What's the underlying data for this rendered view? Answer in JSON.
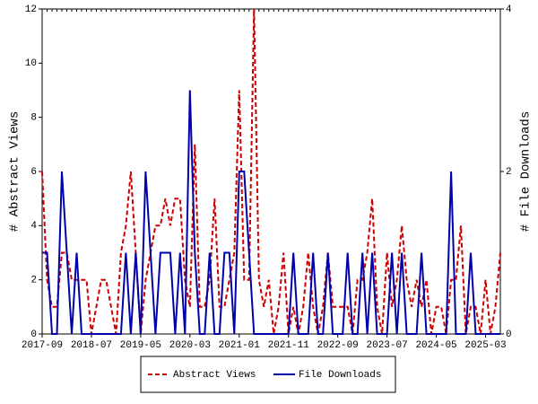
{
  "chart_data": {
    "type": "line",
    "x": [
      "2017-09",
      "2017-10",
      "2017-11",
      "2017-12",
      "2018-01",
      "2018-02",
      "2018-03",
      "2018-04",
      "2018-05",
      "2018-06",
      "2018-07",
      "2018-08",
      "2018-09",
      "2018-10",
      "2018-11",
      "2018-12",
      "2019-01",
      "2019-02",
      "2019-03",
      "2019-04",
      "2019-05",
      "2019-06",
      "2019-07",
      "2019-08",
      "2019-09",
      "2019-10",
      "2019-11",
      "2019-12",
      "2020-01",
      "2020-02",
      "2020-03",
      "2020-04",
      "2020-05",
      "2020-06",
      "2020-07",
      "2020-08",
      "2020-09",
      "2020-10",
      "2020-11",
      "2020-12",
      "2021-01",
      "2021-02",
      "2021-03",
      "2021-04",
      "2021-05",
      "2021-06",
      "2021-07",
      "2021-08",
      "2021-09",
      "2021-10",
      "2021-11",
      "2021-12",
      "2022-01",
      "2022-02",
      "2022-03",
      "2022-04",
      "2022-05",
      "2022-06",
      "2022-07",
      "2022-08",
      "2022-09",
      "2022-10",
      "2022-11",
      "2022-12",
      "2023-01",
      "2023-02",
      "2023-03",
      "2023-04",
      "2023-05",
      "2023-06",
      "2023-07",
      "2023-08",
      "2023-09",
      "2023-10",
      "2023-11",
      "2023-12",
      "2024-01",
      "2024-02",
      "2024-03",
      "2024-04",
      "2024-05",
      "2024-06",
      "2024-07",
      "2024-08",
      "2024-09",
      "2024-10",
      "2024-11",
      "2024-12",
      "2025-01",
      "2025-02",
      "2025-03",
      "2025-04",
      "2025-05",
      "2025-06"
    ],
    "xticks": [
      "2017-09",
      "2018-07",
      "2019-05",
      "2020-03",
      "2021-01",
      "2021-11",
      "2022-09",
      "2023-07",
      "2024-05",
      "2025-03"
    ],
    "ylabel": "# Abstract Views",
    "y2label": "# File Downloads",
    "ylim": [
      0,
      12
    ],
    "yticks": [
      0,
      2,
      4,
      6,
      8,
      10,
      12
    ],
    "y2lim": [
      0,
      4
    ],
    "y2ticks": [
      0,
      2,
      4
    ],
    "series": [
      {
        "name": "Abstract Views",
        "color": "#cc0000",
        "dash": true,
        "values": [
          6,
          2,
          1,
          1,
          3,
          3,
          2,
          2,
          2,
          2,
          0,
          1,
          2,
          2,
          1,
          0,
          3,
          4,
          6,
          3,
          0,
          2,
          3,
          4,
          4,
          5,
          4,
          5,
          5,
          2,
          1,
          7,
          1,
          1,
          2,
          5,
          1,
          1,
          2,
          3,
          9,
          2,
          2,
          12,
          2,
          1,
          2,
          0,
          1,
          3,
          0,
          1,
          0,
          1,
          3,
          1,
          0,
          1,
          3,
          1,
          1,
          1,
          1,
          0,
          2,
          2,
          3,
          5,
          1,
          0,
          3,
          1,
          2,
          4,
          2,
          1,
          2,
          1,
          2,
          0,
          1,
          1,
          0,
          2,
          2,
          4,
          0,
          1,
          1,
          0,
          2,
          0,
          1,
          3
        ]
      },
      {
        "name": "File Downloads",
        "color": "#0000aa",
        "axis": "y2",
        "values": [
          1,
          1,
          0,
          0,
          2,
          1,
          0,
          1,
          0,
          0,
          0,
          0,
          0,
          0,
          0,
          0,
          0,
          1,
          0,
          1,
          0,
          2,
          1,
          0,
          1,
          1,
          1,
          0,
          1,
          0,
          3,
          1,
          0,
          0,
          1,
          0,
          0,
          1,
          1,
          0,
          2,
          2,
          1,
          0,
          0,
          0,
          0,
          0,
          0,
          0,
          0,
          1,
          0,
          0,
          0,
          1,
          0,
          0,
          1,
          0,
          0,
          0,
          1,
          0,
          0,
          1,
          0,
          1,
          0,
          0,
          0,
          1,
          0,
          1,
          0,
          0,
          0,
          1,
          0,
          0,
          0,
          0,
          0,
          2,
          0,
          0,
          0,
          1,
          0,
          0,
          0,
          0,
          0,
          0
        ]
      }
    ]
  }
}
